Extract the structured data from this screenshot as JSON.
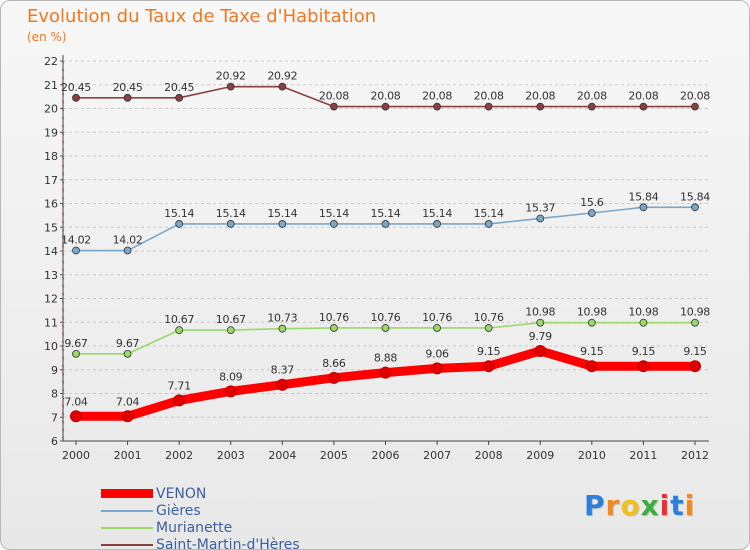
{
  "chart_data": {
    "type": "line",
    "title": "Evolution du Taux de Taxe d'Habitation",
    "subtitle": "(en %)",
    "x": [
      "2000",
      "2001",
      "2002",
      "2003",
      "2004",
      "2005",
      "2006",
      "2007",
      "2008",
      "2009",
      "2010",
      "2011",
      "2012"
    ],
    "yticks": [
      "6",
      "7",
      "8",
      "9",
      "10",
      "11",
      "12",
      "13",
      "14",
      "15",
      "16",
      "17",
      "18",
      "19",
      "20",
      "21",
      "22"
    ],
    "ylim": [
      6,
      22
    ],
    "grid": "horizontal dashed",
    "legend_position": "bottom-left",
    "series": [
      {
        "name": "VENON",
        "color": "#ff0000",
        "values": [
          7.04,
          7.04,
          7.71,
          8.09,
          8.37,
          8.66,
          8.88,
          9.06,
          9.15,
          9.79,
          9.15,
          9.15,
          9.15
        ],
        "labels": [
          "7.04",
          "7.04",
          "7.71",
          "8.09",
          "8.37",
          "8.66",
          "8.88",
          "9.06",
          "9.15",
          "9.79",
          "9.15",
          "9.15",
          "9.15"
        ]
      },
      {
        "name": "Gières",
        "color": "#7aa6c8",
        "values": [
          14.02,
          14.02,
          15.14,
          15.14,
          15.14,
          15.14,
          15.14,
          15.14,
          15.14,
          15.37,
          15.6,
          15.84,
          15.84
        ],
        "labels": [
          "14.02",
          "14.02",
          "15.14",
          "15.14",
          "15.14",
          "15.14",
          "15.14",
          "15.14",
          "15.14",
          "15.37",
          "15.6",
          "15.84",
          "15.84"
        ]
      },
      {
        "name": "Murianette",
        "color": "#9ad86a",
        "values": [
          9.67,
          9.67,
          10.67,
          10.67,
          10.73,
          10.76,
          10.76,
          10.76,
          10.76,
          10.98,
          10.98,
          10.98,
          10.98
        ],
        "labels": [
          "9.67",
          "9.67",
          "10.67",
          "10.67",
          "10.73",
          "10.76",
          "10.76",
          "10.76",
          "10.76",
          "10.98",
          "10.98",
          "10.98",
          "10.98"
        ]
      },
      {
        "name": "Saint-Martin-d'Hères",
        "color": "#8a4040",
        "values": [
          20.45,
          20.45,
          20.45,
          20.92,
          20.92,
          20.08,
          20.08,
          20.08,
          20.08,
          20.08,
          20.08,
          20.08,
          20.08
        ],
        "labels": [
          "20.45",
          "20.45",
          "20.45",
          "20.92",
          "20.92",
          "20.08",
          "20.08",
          "20.08",
          "20.08",
          "20.08",
          "20.08",
          "20.08",
          "20.08"
        ]
      }
    ]
  },
  "brand": {
    "letters": [
      "P",
      "r",
      "o",
      "x",
      "i",
      "t",
      "i"
    ],
    "colors": [
      "#2f7fd6",
      "#f08a20",
      "#f0c020",
      "#3cae3c",
      "#e83030",
      "#2f7fd6",
      "#f08a20"
    ]
  }
}
